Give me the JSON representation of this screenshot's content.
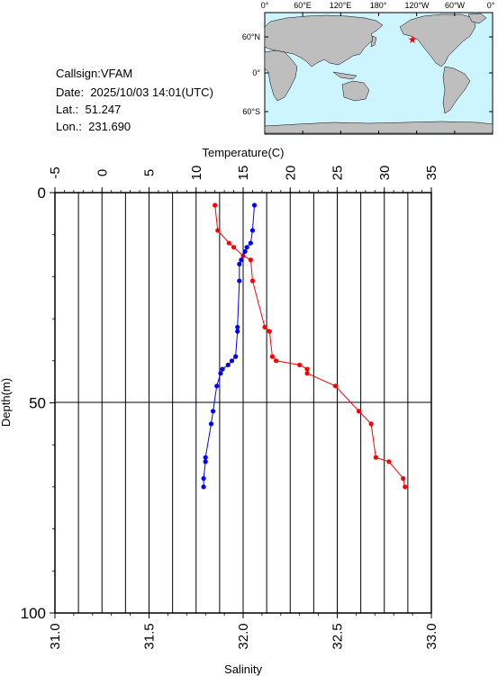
{
  "info": {
    "callsign_label": "Callsign:",
    "callsign": "VFAM",
    "date_label": "Date:",
    "date": "2025/10/03 14:01(UTC)",
    "lat_label": "Lat.:",
    "lat": "51.247",
    "lon_label": "Lon.:",
    "lon": "231.690"
  },
  "map": {
    "lon_labels": [
      "0°",
      "60°E",
      "120°E",
      "180°",
      "120°W",
      "60°W",
      "0°"
    ],
    "lat_labels": [
      "60°N",
      "0°",
      "60°S"
    ],
    "ocean_color": "#ccf5ff",
    "land_color": "#bebebe",
    "marker": "red-star"
  },
  "chart_data": {
    "type": "line",
    "xlabel_top": "Temperature(C)",
    "xlabel_bottom": "Salinity",
    "ylabel": "Depth(m)",
    "temp_ticks": [
      -5,
      0,
      5,
      10,
      15,
      20,
      25,
      30,
      35
    ],
    "temp_lim": [
      -5,
      35
    ],
    "sal_ticks": [
      "31.0",
      "31.5",
      "32.0",
      "32.5",
      "33.0"
    ],
    "sal_lim": [
      31.0,
      33.0
    ],
    "depth_ticks": [
      0,
      50,
      100
    ],
    "depth_lim": [
      0,
      100
    ],
    "grid": true,
    "series": [
      {
        "name": "Temperature",
        "color": "#ff0000",
        "axis": "temperature",
        "depth": [
          3,
          9,
          12,
          13,
          15,
          16,
          21,
          32,
          33,
          39,
          40,
          41,
          42,
          43,
          46,
          52,
          55,
          63,
          64,
          68,
          70
        ],
        "values": [
          12.0,
          12.3,
          13.5,
          14.0,
          15.0,
          15.8,
          16.0,
          17.3,
          17.8,
          18.1,
          18.5,
          21.0,
          21.8,
          21.8,
          24.8,
          27.3,
          28.6,
          29.1,
          30.5,
          32.0,
          32.2
        ]
      },
      {
        "name": "Salinity",
        "color": "#0000ff",
        "axis": "salinity",
        "depth": [
          3,
          9,
          12,
          13,
          14,
          16,
          17,
          21,
          32,
          33,
          39,
          40,
          41,
          42,
          43,
          46,
          52,
          55,
          63,
          64,
          68,
          70
        ],
        "values": [
          32.06,
          32.05,
          32.04,
          32.02,
          32.01,
          31.99,
          31.98,
          31.98,
          31.97,
          31.97,
          31.96,
          31.94,
          31.92,
          31.89,
          31.88,
          31.86,
          31.84,
          31.83,
          31.8,
          31.8,
          31.79,
          31.79
        ]
      }
    ]
  }
}
